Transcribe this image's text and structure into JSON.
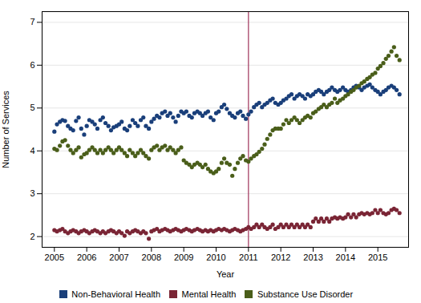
{
  "chart_data": {
    "type": "scatter",
    "xlabel": "Year",
    "ylabel": "Number of Services",
    "xlim": [
      2004.62,
      2015.95
    ],
    "xticks": [
      2005,
      2006,
      2007,
      2008,
      2009,
      2010,
      2011,
      2012,
      2013,
      2014,
      2015
    ],
    "ylim": [
      1.75,
      7.25
    ],
    "yticks": [
      2,
      3,
      4,
      5,
      6,
      7
    ],
    "grid": true,
    "legend": "bottom",
    "marker": "circle",
    "vlines": [
      {
        "x": 2011.0,
        "color": "#a0335a"
      }
    ],
    "x": [
      2005.0,
      2005.08,
      2005.17,
      2005.25,
      2005.33,
      2005.42,
      2005.5,
      2005.58,
      2005.67,
      2005.75,
      2005.83,
      2005.92,
      2006.0,
      2006.08,
      2006.17,
      2006.25,
      2006.33,
      2006.42,
      2006.5,
      2006.58,
      2006.67,
      2006.75,
      2006.83,
      2006.92,
      2007.0,
      2007.08,
      2007.17,
      2007.25,
      2007.33,
      2007.42,
      2007.5,
      2007.58,
      2007.67,
      2007.75,
      2007.83,
      2007.92,
      2008.0,
      2008.08,
      2008.17,
      2008.25,
      2008.33,
      2008.42,
      2008.5,
      2008.58,
      2008.67,
      2008.75,
      2008.83,
      2008.92,
      2009.0,
      2009.08,
      2009.17,
      2009.25,
      2009.33,
      2009.42,
      2009.5,
      2009.58,
      2009.67,
      2009.75,
      2009.83,
      2009.92,
      2010.0,
      2010.08,
      2010.17,
      2010.25,
      2010.33,
      2010.42,
      2010.5,
      2010.58,
      2010.67,
      2010.75,
      2010.83,
      2010.92,
      2011.0,
      2011.08,
      2011.17,
      2011.25,
      2011.33,
      2011.42,
      2011.5,
      2011.58,
      2011.67,
      2011.75,
      2011.83,
      2011.92,
      2012.0,
      2012.08,
      2012.17,
      2012.25,
      2012.33,
      2012.42,
      2012.5,
      2012.58,
      2012.67,
      2012.75,
      2012.83,
      2012.92,
      2013.0,
      2013.08,
      2013.17,
      2013.25,
      2013.33,
      2013.42,
      2013.5,
      2013.58,
      2013.67,
      2013.75,
      2013.83,
      2013.92,
      2014.0,
      2014.08,
      2014.17,
      2014.25,
      2014.33,
      2014.42,
      2014.5,
      2014.58,
      2014.67,
      2014.75,
      2014.83,
      2014.92,
      2015.0,
      2015.08,
      2015.17,
      2015.25,
      2015.33,
      2015.42,
      2015.5,
      2015.58,
      2015.67
    ],
    "series": [
      {
        "name": "Non-Behavioral Health",
        "color": "#1a3f7a",
        "values": [
          4.45,
          4.62,
          4.68,
          4.72,
          4.7,
          4.58,
          4.52,
          4.48,
          4.7,
          4.78,
          4.52,
          4.38,
          4.58,
          4.72,
          4.68,
          4.62,
          4.52,
          4.72,
          4.78,
          4.65,
          4.58,
          4.48,
          4.55,
          4.58,
          4.62,
          4.68,
          4.52,
          4.48,
          4.58,
          4.72,
          4.65,
          4.58,
          4.72,
          4.78,
          4.58,
          4.52,
          4.68,
          4.75,
          4.82,
          4.78,
          4.88,
          4.92,
          4.82,
          4.88,
          4.78,
          4.68,
          4.82,
          4.92,
          4.88,
          4.92,
          4.82,
          4.78,
          4.88,
          4.92,
          4.88,
          4.82,
          4.88,
          4.92,
          4.78,
          4.72,
          4.88,
          4.92,
          5.02,
          5.08,
          4.98,
          4.88,
          4.82,
          4.78,
          4.88,
          4.92,
          4.82,
          4.75,
          4.85,
          4.92,
          5.02,
          5.08,
          5.12,
          5.02,
          5.08,
          5.12,
          5.18,
          5.22,
          5.12,
          5.08,
          5.12,
          5.18,
          5.22,
          5.28,
          5.32,
          5.22,
          5.28,
          5.32,
          5.28,
          5.22,
          5.32,
          5.28,
          5.32,
          5.38,
          5.42,
          5.38,
          5.32,
          5.38,
          5.42,
          5.48,
          5.42,
          5.38,
          5.42,
          5.48,
          5.42,
          5.38,
          5.42,
          5.48,
          5.52,
          5.48,
          5.42,
          5.48,
          5.52,
          5.55,
          5.48,
          5.42,
          5.38,
          5.32,
          5.38,
          5.42,
          5.48,
          5.52,
          5.48,
          5.42,
          5.32
        ]
      },
      {
        "name": "Mental Health",
        "color": "#7a2535",
        "values": [
          2.15,
          2.12,
          2.15,
          2.18,
          2.12,
          2.08,
          2.12,
          2.15,
          2.12,
          2.08,
          2.12,
          2.15,
          2.12,
          2.08,
          2.12,
          2.15,
          2.12,
          2.08,
          2.12,
          2.08,
          2.12,
          2.15,
          2.12,
          2.08,
          2.12,
          2.08,
          2.02,
          2.12,
          2.08,
          2.12,
          2.15,
          2.12,
          2.08,
          2.12,
          2.08,
          1.95,
          2.12,
          2.15,
          2.18,
          2.12,
          2.15,
          2.18,
          2.15,
          2.12,
          2.15,
          2.18,
          2.15,
          2.12,
          2.15,
          2.18,
          2.15,
          2.12,
          2.15,
          2.18,
          2.15,
          2.12,
          2.15,
          2.12,
          2.15,
          2.12,
          2.15,
          2.18,
          2.15,
          2.18,
          2.15,
          2.12,
          2.15,
          2.18,
          2.15,
          2.12,
          2.15,
          2.18,
          2.22,
          2.18,
          2.22,
          2.28,
          2.22,
          2.28,
          2.22,
          2.18,
          2.22,
          2.28,
          2.18,
          2.22,
          2.28,
          2.22,
          2.28,
          2.22,
          2.28,
          2.22,
          2.28,
          2.22,
          2.28,
          2.22,
          2.28,
          2.22,
          2.35,
          2.42,
          2.35,
          2.42,
          2.35,
          2.42,
          2.35,
          2.42,
          2.45,
          2.42,
          2.45,
          2.42,
          2.45,
          2.52,
          2.45,
          2.52,
          2.45,
          2.52,
          2.55,
          2.52,
          2.55,
          2.52,
          2.55,
          2.62,
          2.55,
          2.62,
          2.55,
          2.52,
          2.55,
          2.62,
          2.65,
          2.62,
          2.55
        ]
      },
      {
        "name": "Substance Use Disorder",
        "color": "#4a5e1a",
        "values": [
          4.05,
          4.02,
          4.12,
          4.22,
          4.25,
          4.12,
          4.02,
          3.95,
          4.02,
          4.08,
          3.85,
          3.92,
          3.95,
          4.02,
          4.08,
          4.02,
          3.95,
          4.02,
          3.95,
          4.02,
          4.08,
          4.02,
          3.95,
          4.02,
          4.08,
          4.02,
          3.95,
          3.88,
          4.02,
          3.95,
          3.88,
          3.95,
          4.02,
          3.95,
          3.88,
          3.82,
          4.02,
          4.08,
          4.12,
          4.02,
          4.08,
          4.12,
          4.02,
          4.08,
          4.02,
          3.95,
          4.02,
          4.08,
          3.78,
          3.72,
          3.68,
          3.62,
          3.68,
          3.72,
          3.68,
          3.62,
          3.68,
          3.58,
          3.52,
          3.48,
          3.52,
          3.58,
          3.72,
          3.82,
          3.72,
          3.68,
          3.42,
          3.58,
          3.72,
          3.82,
          3.88,
          3.78,
          3.75,
          3.82,
          3.88,
          3.92,
          3.98,
          4.05,
          4.15,
          4.28,
          4.38,
          4.48,
          4.52,
          4.52,
          4.52,
          4.62,
          4.72,
          4.65,
          4.72,
          4.78,
          4.72,
          4.65,
          4.72,
          4.78,
          4.82,
          4.78,
          4.88,
          4.92,
          4.98,
          5.02,
          5.08,
          5.02,
          5.08,
          5.12,
          5.22,
          5.12,
          5.18,
          5.22,
          5.28,
          5.32,
          5.38,
          5.42,
          5.48,
          5.52,
          5.58,
          5.62,
          5.68,
          5.72,
          5.78,
          5.82,
          5.92,
          5.98,
          6.05,
          6.15,
          6.22,
          6.32,
          6.42,
          6.22,
          6.12
        ]
      }
    ]
  }
}
